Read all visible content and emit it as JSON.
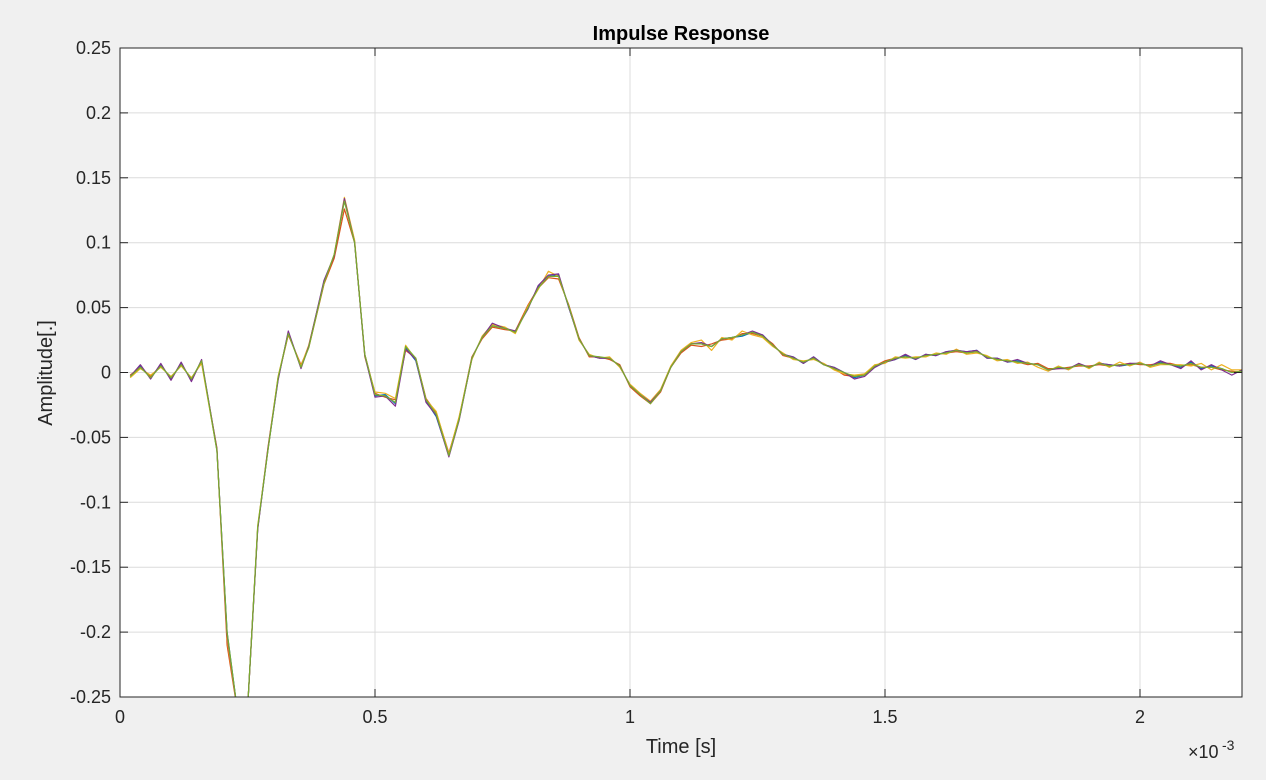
{
  "chart_data": {
    "type": "line",
    "title": "Impulse Response",
    "xlabel": "Time [s]",
    "ylabel": "Amplitude[.]",
    "x_exponent_label": "×10",
    "x_exponent_power": "-3",
    "xlim": [
      0,
      2.2
    ],
    "ylim": [
      -0.25,
      0.25
    ],
    "x_scale_note": "x values in units of 1e-3 s",
    "grid": true,
    "x_ticks": [
      0,
      0.5,
      1,
      1.5,
      2
    ],
    "x_tick_labels": [
      "0",
      "0.5",
      "1",
      "1.5",
      "2"
    ],
    "y_ticks": [
      -0.25,
      -0.2,
      -0.15,
      -0.1,
      -0.05,
      0,
      0.05,
      0.1,
      0.15,
      0.2,
      0.25
    ],
    "y_tick_labels": [
      "-0.25",
      "-0.2",
      "-0.15",
      "-0.1",
      "-0.05",
      "0",
      "0.05",
      "0.1",
      "0.15",
      "0.2",
      "0.25"
    ],
    "series": [
      {
        "color": "#0072bd",
        "x": [
          0.02,
          0.04,
          0.06,
          0.08,
          0.1,
          0.12,
          0.14,
          0.16,
          0.19,
          0.21,
          0.23,
          0.25,
          0.27,
          0.29,
          0.31,
          0.33,
          0.355,
          0.37,
          0.4,
          0.42,
          0.44,
          0.46,
          0.48,
          0.5,
          0.52,
          0.54,
          0.56,
          0.58,
          0.6,
          0.62,
          0.645,
          0.665,
          0.69,
          0.71,
          0.73,
          0.755,
          0.775,
          0.8,
          0.82,
          0.84,
          0.86,
          0.88,
          0.9,
          0.92,
          0.94,
          0.96,
          0.98,
          1.0,
          1.02,
          1.04,
          1.06,
          1.08,
          1.1,
          1.12,
          1.14,
          1.16,
          1.18,
          1.2,
          1.22,
          1.24,
          1.26,
          1.28,
          1.3,
          1.32,
          1.34,
          1.36,
          1.38,
          1.4,
          1.42,
          1.44,
          1.46,
          1.48,
          1.5,
          1.52,
          1.54,
          1.56,
          1.58,
          1.6,
          1.62,
          1.64,
          1.66,
          1.68,
          1.7,
          1.72,
          1.74,
          1.76,
          1.78,
          1.8,
          1.82,
          1.84,
          1.86,
          1.88,
          1.9,
          1.92,
          1.94,
          1.96,
          1.98,
          2.0,
          2.02,
          2.04,
          2.06,
          2.08,
          2.1,
          2.12,
          2.14,
          2.16,
          2.18,
          2.2
        ],
        "values": [
          -0.003,
          0.005,
          -0.004,
          0.006,
          -0.005,
          0.007,
          -0.006,
          0.009,
          -0.06,
          -0.2,
          -0.26,
          -0.26,
          -0.12,
          -0.06,
          -0.005,
          0.031,
          0.004,
          0.02,
          0.07,
          0.09,
          0.133,
          0.101,
          0.013,
          -0.018,
          -0.017,
          -0.024,
          0.019,
          0.009,
          -0.022,
          -0.034,
          -0.064,
          -0.036,
          0.011,
          0.027,
          0.036,
          0.034,
          0.031,
          0.05,
          0.066,
          0.074,
          0.075,
          0.05,
          0.026,
          0.013,
          0.011,
          0.011,
          0.005,
          -0.01,
          -0.017,
          -0.023,
          -0.014,
          0.004,
          0.016,
          0.022,
          0.022,
          0.02,
          0.026,
          0.027,
          0.028,
          0.031,
          0.029,
          0.021,
          0.014,
          0.012,
          0.007,
          0.012,
          0.006,
          0.004,
          0.0,
          -0.004,
          -0.002,
          0.004,
          0.008,
          0.01,
          0.013,
          0.01,
          0.014,
          0.013,
          0.016,
          0.017,
          0.016,
          0.017,
          0.011,
          0.011,
          0.008,
          0.009,
          0.007,
          0.006,
          0.002,
          0.004,
          0.003,
          0.006,
          0.004,
          0.007,
          0.006,
          0.005,
          0.006,
          0.007,
          0.005,
          0.008,
          0.006,
          0.004,
          0.008,
          0.003,
          0.005,
          0.003,
          0.0,
          0.001
        ]
      },
      {
        "color": "#d95319",
        "x": [
          0.02,
          0.04,
          0.06,
          0.08,
          0.1,
          0.12,
          0.14,
          0.16,
          0.19,
          0.21,
          0.23,
          0.25,
          0.27,
          0.29,
          0.31,
          0.33,
          0.355,
          0.37,
          0.4,
          0.42,
          0.44,
          0.46,
          0.48,
          0.5,
          0.52,
          0.54,
          0.56,
          0.58,
          0.6,
          0.62,
          0.645,
          0.665,
          0.69,
          0.71,
          0.73,
          0.755,
          0.775,
          0.8,
          0.82,
          0.84,
          0.86,
          0.88,
          0.9,
          0.92,
          0.94,
          0.96,
          0.98,
          1.0,
          1.02,
          1.04,
          1.06,
          1.08,
          1.1,
          1.12,
          1.14,
          1.16,
          1.18,
          1.2,
          1.22,
          1.24,
          1.26,
          1.28,
          1.3,
          1.32,
          1.34,
          1.36,
          1.38,
          1.4,
          1.42,
          1.44,
          1.46,
          1.48,
          1.5,
          1.52,
          1.54,
          1.56,
          1.58,
          1.6,
          1.62,
          1.64,
          1.66,
          1.68,
          1.7,
          1.72,
          1.74,
          1.76,
          1.78,
          1.8,
          1.82,
          1.84,
          1.86,
          1.88,
          1.9,
          1.92,
          1.94,
          1.96,
          1.98,
          2.0,
          2.02,
          2.04,
          2.06,
          2.08,
          2.1,
          2.12,
          2.14,
          2.16,
          2.18,
          2.2
        ],
        "values": [
          -0.002,
          0.004,
          -0.003,
          0.005,
          -0.004,
          0.006,
          -0.005,
          0.008,
          -0.058,
          -0.21,
          -0.26,
          -0.26,
          -0.12,
          -0.058,
          -0.004,
          0.029,
          0.006,
          0.019,
          0.068,
          0.088,
          0.126,
          0.1,
          0.014,
          -0.016,
          -0.019,
          -0.021,
          0.017,
          0.011,
          -0.02,
          -0.031,
          -0.062,
          -0.035,
          0.012,
          0.026,
          0.035,
          0.033,
          0.032,
          0.052,
          0.065,
          0.073,
          0.072,
          0.052,
          0.027,
          0.012,
          0.012,
          0.01,
          0.006,
          -0.011,
          -0.018,
          -0.024,
          -0.015,
          0.004,
          0.015,
          0.021,
          0.02,
          0.022,
          0.025,
          0.026,
          0.03,
          0.03,
          0.028,
          0.022,
          0.013,
          0.011,
          0.008,
          0.011,
          0.006,
          0.003,
          -0.002,
          -0.003,
          -0.001,
          0.005,
          0.009,
          0.011,
          0.012,
          0.011,
          0.013,
          0.014,
          0.015,
          0.016,
          0.015,
          0.016,
          0.012,
          0.01,
          0.009,
          0.008,
          0.006,
          0.007,
          0.003,
          0.003,
          0.004,
          0.005,
          0.005,
          0.006,
          0.005,
          0.006,
          0.007,
          0.006,
          0.006,
          0.007,
          0.007,
          0.005,
          0.006,
          0.004,
          0.004,
          0.002,
          0.001,
          0.0
        ]
      },
      {
        "color": "#edb120",
        "x": [
          0.02,
          0.04,
          0.06,
          0.08,
          0.1,
          0.12,
          0.14,
          0.16,
          0.19,
          0.21,
          0.23,
          0.25,
          0.27,
          0.29,
          0.31,
          0.33,
          0.355,
          0.37,
          0.4,
          0.42,
          0.44,
          0.46,
          0.48,
          0.5,
          0.52,
          0.54,
          0.56,
          0.58,
          0.6,
          0.62,
          0.645,
          0.665,
          0.69,
          0.71,
          0.73,
          0.755,
          0.775,
          0.8,
          0.82,
          0.84,
          0.86,
          0.88,
          0.9,
          0.92,
          0.94,
          0.96,
          0.98,
          1.0,
          1.02,
          1.04,
          1.06,
          1.08,
          1.1,
          1.12,
          1.14,
          1.16,
          1.18,
          1.2,
          1.22,
          1.24,
          1.26,
          1.28,
          1.3,
          1.32,
          1.34,
          1.36,
          1.38,
          1.4,
          1.42,
          1.44,
          1.46,
          1.48,
          1.5,
          1.52,
          1.54,
          1.56,
          1.58,
          1.6,
          1.62,
          1.64,
          1.66,
          1.68,
          1.7,
          1.72,
          1.74,
          1.76,
          1.78,
          1.8,
          1.82,
          1.84,
          1.86,
          1.88,
          1.9,
          1.92,
          1.94,
          1.96,
          1.98,
          2.0,
          2.02,
          2.04,
          2.06,
          2.08,
          2.1,
          2.12,
          2.14,
          2.16,
          2.18,
          2.2
        ],
        "values": [
          -0.004,
          0.003,
          -0.002,
          0.004,
          -0.003,
          0.005,
          -0.004,
          0.007,
          -0.06,
          -0.205,
          -0.26,
          -0.26,
          -0.118,
          -0.06,
          -0.003,
          0.03,
          0.005,
          0.021,
          0.069,
          0.091,
          0.135,
          0.102,
          0.012,
          -0.015,
          -0.016,
          -0.02,
          0.021,
          0.01,
          -0.021,
          -0.03,
          -0.063,
          -0.034,
          0.01,
          0.028,
          0.037,
          0.035,
          0.03,
          0.051,
          0.064,
          0.078,
          0.074,
          0.051,
          0.025,
          0.014,
          0.011,
          0.012,
          0.004,
          -0.009,
          -0.016,
          -0.022,
          -0.013,
          0.005,
          0.017,
          0.023,
          0.025,
          0.017,
          0.027,
          0.025,
          0.032,
          0.029,
          0.027,
          0.02,
          0.015,
          0.01,
          0.009,
          0.01,
          0.007,
          0.002,
          -0.001,
          -0.002,
          -0.001,
          0.006,
          0.007,
          0.012,
          0.011,
          0.012,
          0.012,
          0.015,
          0.014,
          0.018,
          0.014,
          0.015,
          0.013,
          0.009,
          0.01,
          0.007,
          0.008,
          0.004,
          0.001,
          0.005,
          0.002,
          0.007,
          0.003,
          0.008,
          0.004,
          0.008,
          0.005,
          0.008,
          0.004,
          0.006,
          0.006,
          0.006,
          0.005,
          0.007,
          0.002,
          0.006,
          0.002,
          0.002
        ]
      },
      {
        "color": "#7e2f8e",
        "x": [
          0.02,
          0.04,
          0.06,
          0.08,
          0.1,
          0.12,
          0.14,
          0.16,
          0.19,
          0.21,
          0.23,
          0.25,
          0.27,
          0.29,
          0.31,
          0.33,
          0.355,
          0.37,
          0.4,
          0.42,
          0.44,
          0.46,
          0.48,
          0.5,
          0.52,
          0.54,
          0.56,
          0.58,
          0.6,
          0.62,
          0.645,
          0.665,
          0.69,
          0.71,
          0.73,
          0.755,
          0.775,
          0.8,
          0.82,
          0.84,
          0.86,
          0.88,
          0.9,
          0.92,
          0.94,
          0.96,
          0.98,
          1.0,
          1.02,
          1.04,
          1.06,
          1.08,
          1.1,
          1.12,
          1.14,
          1.16,
          1.18,
          1.2,
          1.22,
          1.24,
          1.26,
          1.28,
          1.3,
          1.32,
          1.34,
          1.36,
          1.38,
          1.4,
          1.42,
          1.44,
          1.46,
          1.48,
          1.5,
          1.52,
          1.54,
          1.56,
          1.58,
          1.6,
          1.62,
          1.64,
          1.66,
          1.68,
          1.7,
          1.72,
          1.74,
          1.76,
          1.78,
          1.8,
          1.82,
          1.84,
          1.86,
          1.88,
          1.9,
          1.92,
          1.94,
          1.96,
          1.98,
          2.0,
          2.02,
          2.04,
          2.06,
          2.08,
          2.1,
          2.12,
          2.14,
          2.16,
          2.18,
          2.2
        ],
        "values": [
          -0.003,
          0.006,
          -0.005,
          0.007,
          -0.006,
          0.008,
          -0.007,
          0.01,
          -0.059,
          -0.202,
          -0.26,
          -0.26,
          -0.121,
          -0.059,
          -0.006,
          0.032,
          0.003,
          0.02,
          0.071,
          0.09,
          0.134,
          0.1,
          0.013,
          -0.019,
          -0.018,
          -0.026,
          0.018,
          0.01,
          -0.023,
          -0.033,
          -0.065,
          -0.037,
          0.011,
          0.027,
          0.038,
          0.034,
          0.032,
          0.049,
          0.067,
          0.075,
          0.076,
          0.05,
          0.026,
          0.013,
          0.011,
          0.011,
          0.005,
          -0.01,
          -0.017,
          -0.023,
          -0.014,
          0.004,
          0.016,
          0.022,
          0.023,
          0.02,
          0.026,
          0.027,
          0.029,
          0.032,
          0.029,
          0.021,
          0.014,
          0.012,
          0.007,
          0.012,
          0.006,
          0.004,
          0.0,
          -0.005,
          -0.003,
          0.004,
          0.008,
          0.01,
          0.014,
          0.01,
          0.014,
          0.013,
          0.016,
          0.017,
          0.016,
          0.017,
          0.011,
          0.011,
          0.008,
          0.01,
          0.007,
          0.006,
          0.002,
          0.003,
          0.003,
          0.007,
          0.004,
          0.007,
          0.006,
          0.005,
          0.007,
          0.007,
          0.005,
          0.009,
          0.006,
          0.003,
          0.009,
          0.002,
          0.006,
          0.002,
          -0.002,
          0.002
        ]
      },
      {
        "color": "#77ac30",
        "x": [
          0.02,
          0.04,
          0.06,
          0.08,
          0.1,
          0.12,
          0.14,
          0.16,
          0.19,
          0.21,
          0.23,
          0.25,
          0.27,
          0.29,
          0.31,
          0.33,
          0.355,
          0.37,
          0.4,
          0.42,
          0.44,
          0.46,
          0.48,
          0.5,
          0.52,
          0.54,
          0.56,
          0.58,
          0.6,
          0.62,
          0.645,
          0.665,
          0.69,
          0.71,
          0.73,
          0.755,
          0.775,
          0.8,
          0.82,
          0.84,
          0.86,
          0.88,
          0.9,
          0.92,
          0.94,
          0.96,
          0.98,
          1.0,
          1.02,
          1.04,
          1.06,
          1.08,
          1.1,
          1.12,
          1.14,
          1.16,
          1.18,
          1.2,
          1.22,
          1.24,
          1.26,
          1.28,
          1.3,
          1.32,
          1.34,
          1.36,
          1.38,
          1.4,
          1.42,
          1.44,
          1.46,
          1.48,
          1.5,
          1.52,
          1.54,
          1.56,
          1.58,
          1.6,
          1.62,
          1.64,
          1.66,
          1.68,
          1.7,
          1.72,
          1.74,
          1.76,
          1.78,
          1.8,
          1.82,
          1.84,
          1.86,
          1.88,
          1.9,
          1.92,
          1.94,
          1.96,
          1.98,
          2.0,
          2.02,
          2.04,
          2.06,
          2.08,
          2.1,
          2.12,
          2.14,
          2.16,
          2.18,
          2.2
        ],
        "values": [
          -0.003,
          0.004,
          -0.004,
          0.005,
          -0.004,
          0.006,
          -0.005,
          0.009,
          -0.06,
          -0.2,
          -0.26,
          -0.26,
          -0.119,
          -0.06,
          -0.004,
          0.03,
          0.004,
          0.019,
          0.069,
          0.091,
          0.132,
          0.1,
          0.014,
          -0.017,
          -0.018,
          -0.023,
          0.02,
          0.011,
          -0.021,
          -0.032,
          -0.064,
          -0.036,
          0.011,
          0.027,
          0.036,
          0.034,
          0.031,
          0.05,
          0.065,
          0.074,
          0.074,
          0.051,
          0.026,
          0.013,
          0.012,
          0.011,
          0.005,
          -0.01,
          -0.017,
          -0.024,
          -0.014,
          0.004,
          0.016,
          0.022,
          0.022,
          0.02,
          0.026,
          0.027,
          0.029,
          0.031,
          0.028,
          0.021,
          0.014,
          0.011,
          0.008,
          0.011,
          0.006,
          0.003,
          0.0,
          -0.003,
          -0.002,
          0.005,
          0.008,
          0.011,
          0.012,
          0.011,
          0.013,
          0.014,
          0.015,
          0.017,
          0.015,
          0.016,
          0.012,
          0.01,
          0.009,
          0.008,
          0.007,
          0.006,
          0.002,
          0.004,
          0.003,
          0.006,
          0.004,
          0.007,
          0.005,
          0.006,
          0.006,
          0.007,
          0.005,
          0.007,
          0.006,
          0.005,
          0.007,
          0.004,
          0.004,
          0.003,
          0.0,
          0.001
        ]
      }
    ]
  }
}
